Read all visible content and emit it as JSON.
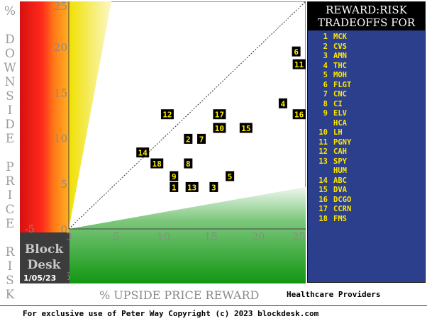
{
  "y_axis_title": "% DOWNSIDE PRICE RISK",
  "x_axis_title": "% UPSIDE PRICE REWARD",
  "block_desk": {
    "line1": "Block",
    "line2": "Desk",
    "date": "1/05/23"
  },
  "panel": {
    "title_line1": "REWARD:RISK",
    "title_line2": "TRADEOFFS FOR",
    "items": [
      {
        "num": "1",
        "ticker": "MCK"
      },
      {
        "num": "2",
        "ticker": "CVS"
      },
      {
        "num": "3",
        "ticker": "AMN"
      },
      {
        "num": "4",
        "ticker": "THC"
      },
      {
        "num": "5",
        "ticker": "MOH"
      },
      {
        "num": "6",
        "ticker": "FLGT"
      },
      {
        "num": "7",
        "ticker": "CNC"
      },
      {
        "num": "8",
        "ticker": "CI"
      },
      {
        "num": "9",
        "ticker": "ELV"
      },
      {
        "num": "",
        "ticker": "HCA"
      },
      {
        "num": "10",
        "ticker": "LH"
      },
      {
        "num": "11",
        "ticker": "PGNY"
      },
      {
        "num": "12",
        "ticker": "CAH"
      },
      {
        "num": "13",
        "ticker": "SPY"
      },
      {
        "num": "",
        "ticker": "HUM"
      },
      {
        "num": "14",
        "ticker": "ABC"
      },
      {
        "num": "15",
        "ticker": "DVA"
      },
      {
        "num": "16",
        "ticker": "DCGO"
      },
      {
        "num": "17",
        "ticker": "CCRN"
      },
      {
        "num": "18",
        "ticker": "FMS"
      }
    ]
  },
  "sector": "Healthcare Providers",
  "footer": "For exclusive use of Peter Way Copyright (c) 2023 blockdesk.com",
  "colors": {
    "panel_bg": "#2b3f8c",
    "legend_text": "#ffe600",
    "marker_bg": "#000000",
    "marker_text": "#ffee00",
    "risk_red": "#ee1c1c",
    "reward_green": "#1f9e1f"
  },
  "chart_data": {
    "type": "scatter",
    "xlabel": "% UPSIDE PRICE REWARD",
    "ylabel": "% DOWNSIDE PRICE RISK",
    "xlim": [
      -5,
      25
    ],
    "ylim": [
      -5,
      25
    ],
    "x_ticks": [
      0,
      5,
      10,
      15,
      20,
      25
    ],
    "y_ticks": [
      0,
      5,
      10,
      15,
      20,
      25
    ],
    "negative_tick_labels": {
      "x_axis": "-5",
      "y_axis": "-5"
    },
    "diagonal": "dotted line where reward equals risk",
    "points": [
      {
        "label": "1",
        "x": 11.1,
        "y": 4.6
      },
      {
        "label": "2",
        "x": 12.6,
        "y": 9.9
      },
      {
        "label": "3",
        "x": 15.3,
        "y": 4.6
      },
      {
        "label": "4",
        "x": 22.6,
        "y": 13.8
      },
      {
        "label": "5",
        "x": 17.0,
        "y": 5.8
      },
      {
        "label": "6",
        "x": 24.0,
        "y": 19.5
      },
      {
        "label": "7",
        "x": 14.0,
        "y": 9.9
      },
      {
        "label": "8",
        "x": 12.6,
        "y": 7.2
      },
      {
        "label": "9",
        "x": 11.1,
        "y": 5.8
      },
      {
        "label": "10",
        "x": 15.9,
        "y": 11.1
      },
      {
        "label": "11",
        "x": 24.3,
        "y": 18.1
      },
      {
        "label": "12",
        "x": 10.4,
        "y": 12.6
      },
      {
        "label": "13",
        "x": 13.0,
        "y": 4.6
      },
      {
        "label": "14",
        "x": 7.8,
        "y": 8.4
      },
      {
        "label": "15",
        "x": 18.7,
        "y": 11.1
      },
      {
        "label": "16",
        "x": 24.3,
        "y": 12.6
      },
      {
        "label": "17",
        "x": 15.9,
        "y": 12.6
      },
      {
        "label": "18",
        "x": 9.3,
        "y": 7.2
      }
    ]
  }
}
